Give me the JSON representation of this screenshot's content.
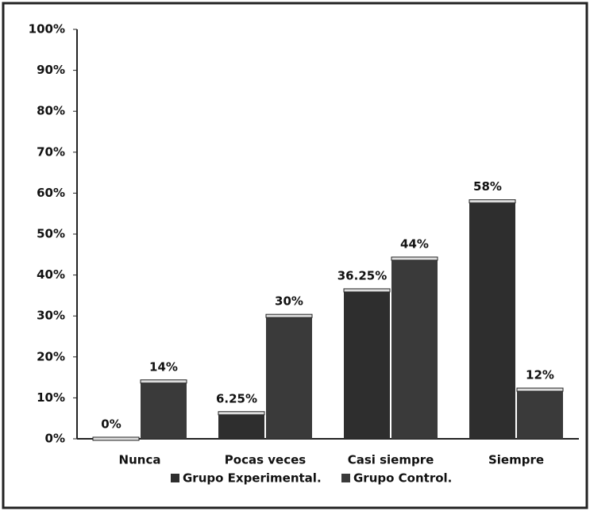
{
  "chart_data": {
    "type": "bar",
    "categories": [
      "Nunca",
      "Pocas veces",
      "Casi siempre",
      "Siempre"
    ],
    "series": [
      {
        "name": "Grupo Experimental.",
        "color": "#2e2e2e",
        "values": [
          0,
          6.25,
          36.25,
          58
        ],
        "value_labels": [
          "0%",
          "6.25%",
          "36.25%",
          "58%"
        ]
      },
      {
        "name": "Grupo Control.",
        "color": "#3a3a3a",
        "values": [
          14,
          30,
          44,
          12
        ],
        "value_labels": [
          "14%",
          "30%",
          "44%",
          "12%"
        ]
      }
    ],
    "ylim": [
      0,
      100
    ],
    "yticks": [
      {
        "value": 0,
        "label": "0%"
      },
      {
        "value": 10,
        "label": "10%"
      },
      {
        "value": 20,
        "label": "20%"
      },
      {
        "value": 30,
        "label": "30%"
      },
      {
        "value": 40,
        "label": "40%"
      },
      {
        "value": 50,
        "label": "50%"
      },
      {
        "value": 60,
        "label": "60%"
      },
      {
        "value": 70,
        "label": "70%"
      },
      {
        "value": 80,
        "label": "80%"
      },
      {
        "value": 90,
        "label": "90%"
      },
      {
        "value": 100,
        "label": "100%"
      }
    ],
    "legend": "bottom"
  }
}
